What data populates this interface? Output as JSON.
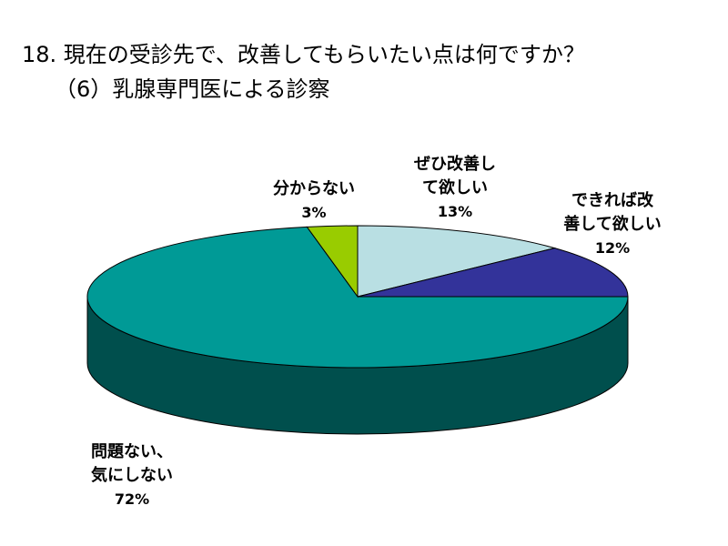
{
  "title_line1": "18. 現在の受診先で、改善してもらいたい点は何ですか？",
  "title_line2": "（6）乳腺専門医による診察",
  "chart_data": {
    "type": "pie",
    "title": "18. 現在の受診先で、改善してもらいたい点は何ですか？ （6）乳腺専門医による診察",
    "slices": [
      {
        "label_lines": [
          "ぜひ改善し",
          "て欲しい"
        ],
        "label": "ぜひ改善して欲しい",
        "value": 13,
        "value_text": "13%",
        "color": "#b9dfe3",
        "side_color": "#7fa5a9"
      },
      {
        "label_lines": [
          "できれば改",
          "善して欲しい"
        ],
        "label": "できれば改善して欲しい",
        "value": 12,
        "value_text": "12%",
        "color": "#33339a",
        "side_color": "#1a1a5c"
      },
      {
        "label_lines": [
          "問題ない、",
          "気にしない"
        ],
        "label": "問題ない、気にしない",
        "value": 72,
        "value_text": "72%",
        "color": "#009a96",
        "side_color": "#004f4d"
      },
      {
        "label_lines": [
          "分からない"
        ],
        "label": "分からない",
        "value": 3,
        "value_text": "3%",
        "color": "#99cc00",
        "side_color": "#5c7a00"
      }
    ],
    "legend": "none",
    "style": "3d-pie"
  }
}
